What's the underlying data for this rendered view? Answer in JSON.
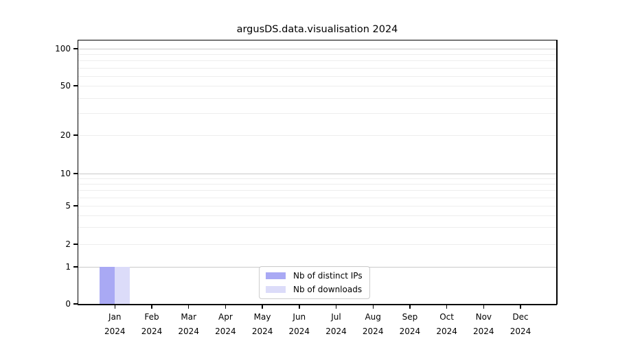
{
  "title": "argusDS.data.visualisation 2024",
  "chart_data": {
    "type": "bar",
    "title": "argusDS.data.visualisation 2024",
    "categories": [
      "Jan",
      "Feb",
      "Mar",
      "Apr",
      "May",
      "Jun",
      "Jul",
      "Aug",
      "Sep",
      "Oct",
      "Nov",
      "Dec"
    ],
    "category_year": "2024",
    "series": [
      {
        "name": "Nb of distinct IPs",
        "color": "#a9a9f4",
        "values": [
          1,
          0,
          0,
          0,
          0,
          0,
          0,
          0,
          0,
          0,
          0,
          0
        ]
      },
      {
        "name": "Nb of downloads",
        "color": "#dcdcf9",
        "values": [
          1,
          0,
          0,
          0,
          0,
          0,
          0,
          0,
          0,
          0,
          0,
          0
        ]
      }
    ],
    "yscale": "symlog",
    "ylim": [
      0,
      100
    ],
    "yticks": [
      0,
      1,
      2,
      5,
      10,
      20,
      50,
      100
    ],
    "minor_grid_values": [
      3,
      4,
      6,
      7,
      8,
      9,
      30,
      40,
      60,
      70,
      80,
      90
    ],
    "major_grid_values": [
      1,
      10,
      100
    ],
    "grid": true,
    "legend_position": "lower center",
    "xlabel": "",
    "ylabel": ""
  },
  "colors": {
    "major_grid": "#c9c9c9",
    "minor_grid": "#ededed",
    "spine": "#000000",
    "text": "#000000",
    "background": "#ffffff",
    "legend_border": "#cccccc"
  }
}
